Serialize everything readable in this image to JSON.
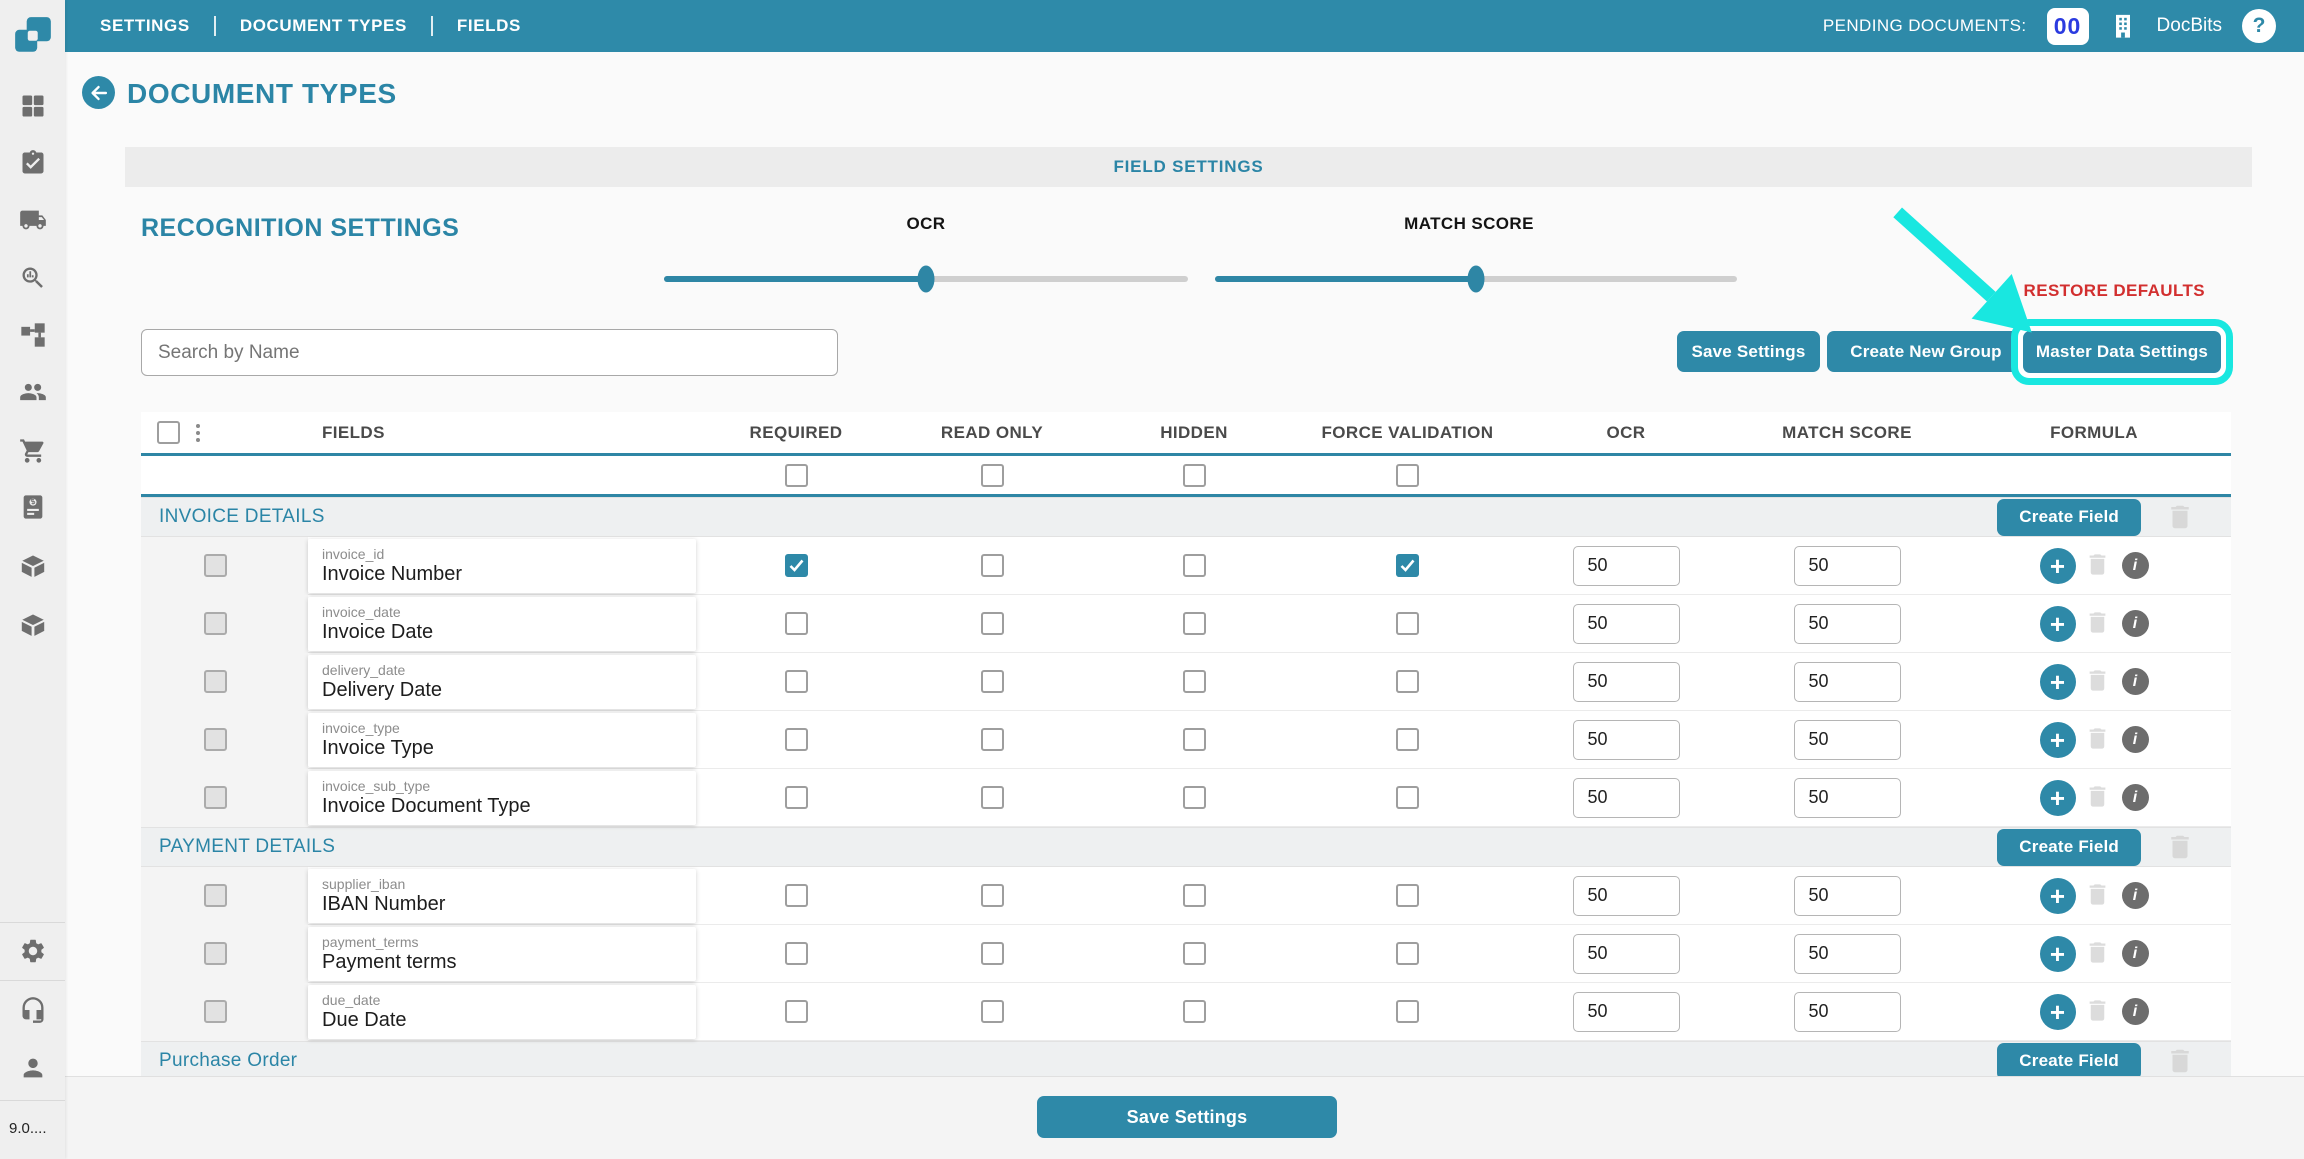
{
  "topbar": {
    "nav": [
      {
        "label": "SETTINGS"
      },
      {
        "label": "DOCUMENT TYPES"
      },
      {
        "label": "FIELDS"
      }
    ],
    "pending_label": "PENDING DOCUMENTS:",
    "pending_count": "00",
    "brand": "DocBits",
    "help_glyph": "?"
  },
  "sidebar": {
    "icons": [
      "dashboard",
      "tasks",
      "shipping",
      "analytics",
      "workflow",
      "users",
      "cart",
      "invoice",
      "package",
      "package-alt",
      "settings",
      "support",
      "profile"
    ],
    "version": "9.0...."
  },
  "page": {
    "title": "DOCUMENT TYPES",
    "panel_title": "FIELD SETTINGS",
    "section_title": "RECOGNITION SETTINGS",
    "restore_defaults": "RESTORE DEFAULTS",
    "search_placeholder": "Search by Name",
    "buttons": {
      "save_settings": "Save Settings",
      "create_new_group": "Create New Group",
      "master_data_settings": "Master Data Settings"
    }
  },
  "recognition": {
    "ocr_label": "OCR",
    "match_label": "MATCH SCORE",
    "ocr_value": 50,
    "match_value": 50
  },
  "annotation": {
    "highlight_target": "master-data-settings-button",
    "color": "#19e7e0"
  },
  "table": {
    "headers": [
      "FIELDS",
      "REQUIRED",
      "READ ONLY",
      "HIDDEN",
      "FORCE VALIDATION",
      "OCR",
      "MATCH SCORE",
      "FORMULA"
    ],
    "create_field_label": "Create Field",
    "groups": [
      {
        "name": "INVOICE DETAILS",
        "rows": [
          {
            "key": "invoice_id",
            "label": "Invoice Number",
            "required": true,
            "read_only": false,
            "hidden": false,
            "force_validation": true,
            "ocr": "50",
            "match_score": "50"
          },
          {
            "key": "invoice_date",
            "label": "Invoice Date",
            "required": false,
            "read_only": false,
            "hidden": false,
            "force_validation": false,
            "ocr": "50",
            "match_score": "50"
          },
          {
            "key": "delivery_date",
            "label": "Delivery Date",
            "required": false,
            "read_only": false,
            "hidden": false,
            "force_validation": false,
            "ocr": "50",
            "match_score": "50"
          },
          {
            "key": "invoice_type",
            "label": "Invoice Type",
            "required": false,
            "read_only": false,
            "hidden": false,
            "force_validation": false,
            "ocr": "50",
            "match_score": "50"
          },
          {
            "key": "invoice_sub_type",
            "label": "Invoice Document Type",
            "required": false,
            "read_only": false,
            "hidden": false,
            "force_validation": false,
            "ocr": "50",
            "match_score": "50"
          }
        ]
      },
      {
        "name": "PAYMENT DETAILS",
        "rows": [
          {
            "key": "supplier_iban",
            "label": "IBAN Number",
            "required": false,
            "read_only": false,
            "hidden": false,
            "force_validation": false,
            "ocr": "50",
            "match_score": "50"
          },
          {
            "key": "payment_terms",
            "label": "Payment terms",
            "required": false,
            "read_only": false,
            "hidden": false,
            "force_validation": false,
            "ocr": "50",
            "match_score": "50"
          },
          {
            "key": "due_date",
            "label": "Due Date",
            "required": false,
            "read_only": false,
            "hidden": false,
            "force_validation": false,
            "ocr": "50",
            "match_score": "50"
          }
        ]
      },
      {
        "name": "Purchase Order",
        "rows": []
      }
    ]
  },
  "footer": {
    "save_label": "Save Settings"
  },
  "colors": {
    "teal": "#2e89a8",
    "teal_text": "#2b85a6",
    "red": "#d22f2f",
    "cyan": "#19e7e0",
    "badge_blue": "#2b3be0"
  }
}
